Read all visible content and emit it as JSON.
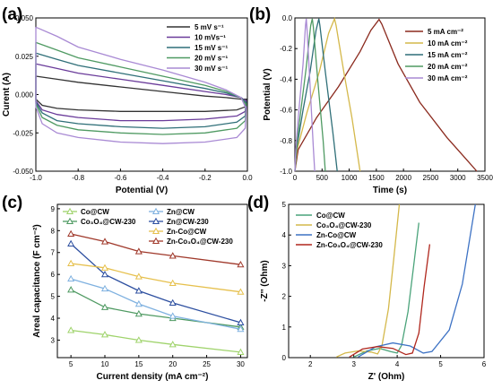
{
  "figure": {
    "panel_letters": [
      "(a)",
      "(b)",
      "(c)",
      "(d)"
    ]
  },
  "chart_data": [
    {
      "panel": "(a)",
      "type": "line",
      "title": "",
      "xlabel": "Potential (V)",
      "ylabel": "Curent (A)",
      "xlim": [
        -1.0,
        0.0
      ],
      "ylim": [
        -0.05,
        0.05
      ],
      "xticks": [
        -1.0,
        -0.8,
        -0.6,
        -0.4,
        -0.2,
        0.0
      ],
      "xtick_labels": [
        "-1.0",
        "-0.8",
        "-0.6",
        "-0.4",
        "-0.2",
        "0.0"
      ],
      "yticks": [
        -0.05,
        -0.025,
        0.0,
        0.025,
        0.05
      ],
      "ytick_labels": [
        "-0.050",
        "-0.025",
        "0.000",
        "0.025",
        "0.050"
      ],
      "legend_position": "top-right",
      "series": [
        {
          "name": "5 mV s⁻¹",
          "color": "#333333",
          "upper": [
            [
              -1.0,
              0.012
            ],
            [
              -0.9,
              0.01
            ],
            [
              -0.8,
              0.008
            ],
            [
              -0.6,
              0.005
            ],
            [
              -0.4,
              0.002
            ],
            [
              -0.2,
              -0.001
            ],
            [
              -0.1,
              -0.002
            ],
            [
              -0.03,
              -0.003
            ],
            [
              -0.01,
              -0.003
            ]
          ],
          "lower": [
            [
              -1.0,
              -0.003
            ],
            [
              -0.97,
              -0.007
            ],
            [
              -0.9,
              -0.009
            ],
            [
              -0.8,
              -0.01
            ],
            [
              -0.6,
              -0.011
            ],
            [
              -0.4,
              -0.011
            ],
            [
              -0.2,
              -0.011
            ],
            [
              -0.05,
              -0.01
            ],
            [
              -0.01,
              -0.008
            ],
            [
              -0.005,
              -0.003
            ]
          ]
        },
        {
          "name": "10 mVs⁻¹",
          "color": "#6a3b9a",
          "upper": [
            [
              -1.0,
              0.02
            ],
            [
              -0.9,
              0.017
            ],
            [
              -0.8,
              0.014
            ],
            [
              -0.6,
              0.01
            ],
            [
              -0.4,
              0.006
            ],
            [
              -0.2,
              0.002
            ],
            [
              -0.1,
              0.0
            ],
            [
              -0.03,
              -0.002
            ],
            [
              -0.01,
              -0.004
            ]
          ],
          "lower": [
            [
              -1.0,
              -0.004
            ],
            [
              -0.97,
              -0.01
            ],
            [
              -0.9,
              -0.013
            ],
            [
              -0.8,
              -0.015
            ],
            [
              -0.6,
              -0.017
            ],
            [
              -0.4,
              -0.017
            ],
            [
              -0.2,
              -0.016
            ],
            [
              -0.05,
              -0.014
            ],
            [
              -0.01,
              -0.011
            ],
            [
              -0.005,
              -0.004
            ]
          ]
        },
        {
          "name": "15 mV s⁻¹",
          "color": "#2f6f78",
          "upper": [
            [
              -1.0,
              0.027
            ],
            [
              -0.9,
              0.023
            ],
            [
              -0.8,
              0.019
            ],
            [
              -0.6,
              0.014
            ],
            [
              -0.4,
              0.009
            ],
            [
              -0.2,
              0.004
            ],
            [
              -0.1,
              0.001
            ],
            [
              -0.03,
              -0.002
            ],
            [
              -0.01,
              -0.005
            ]
          ],
          "lower": [
            [
              -1.0,
              -0.005
            ],
            [
              -0.97,
              -0.012
            ],
            [
              -0.9,
              -0.017
            ],
            [
              -0.8,
              -0.019
            ],
            [
              -0.6,
              -0.021
            ],
            [
              -0.4,
              -0.022
            ],
            [
              -0.2,
              -0.021
            ],
            [
              -0.05,
              -0.018
            ],
            [
              -0.01,
              -0.014
            ],
            [
              -0.005,
              -0.005
            ]
          ]
        },
        {
          "name": "20 mV s⁻¹",
          "color": "#4f9a62",
          "upper": [
            [
              -1.0,
              0.034
            ],
            [
              -0.9,
              0.029
            ],
            [
              -0.8,
              0.024
            ],
            [
              -0.6,
              0.018
            ],
            [
              -0.4,
              0.012
            ],
            [
              -0.2,
              0.006
            ],
            [
              -0.1,
              0.002
            ],
            [
              -0.03,
              -0.002
            ],
            [
              -0.01,
              -0.006
            ]
          ],
          "lower": [
            [
              -1.0,
              -0.006
            ],
            [
              -0.97,
              -0.015
            ],
            [
              -0.9,
              -0.02
            ],
            [
              -0.8,
              -0.023
            ],
            [
              -0.6,
              -0.025
            ],
            [
              -0.4,
              -0.026
            ],
            [
              -0.2,
              -0.025
            ],
            [
              -0.05,
              -0.022
            ],
            [
              -0.01,
              -0.017
            ],
            [
              -0.005,
              -0.006
            ]
          ]
        },
        {
          "name": "30 mV s⁻¹",
          "color": "#a98ad4",
          "upper": [
            [
              -1.0,
              0.044
            ],
            [
              -0.9,
              0.038
            ],
            [
              -0.8,
              0.031
            ],
            [
              -0.6,
              0.023
            ],
            [
              -0.4,
              0.016
            ],
            [
              -0.2,
              0.008
            ],
            [
              -0.1,
              0.003
            ],
            [
              -0.03,
              -0.002
            ],
            [
              -0.01,
              -0.008
            ]
          ],
          "lower": [
            [
              -1.0,
              -0.008
            ],
            [
              -0.97,
              -0.019
            ],
            [
              -0.9,
              -0.025
            ],
            [
              -0.8,
              -0.028
            ],
            [
              -0.6,
              -0.031
            ],
            [
              -0.4,
              -0.032
            ],
            [
              -0.2,
              -0.031
            ],
            [
              -0.05,
              -0.028
            ],
            [
              -0.01,
              -0.022
            ],
            [
              -0.005,
              -0.008
            ]
          ]
        }
      ]
    },
    {
      "panel": "(b)",
      "type": "line",
      "title": "",
      "xlabel": "Time (s)",
      "ylabel": "Potential (V)",
      "xlim": [
        0,
        3500
      ],
      "ylim": [
        -1.0,
        0.0
      ],
      "xticks": [
        0,
        500,
        1000,
        1500,
        2000,
        2500,
        3000,
        3500
      ],
      "xtick_labels": [
        "0",
        "500",
        "1000",
        "1500",
        "2000",
        "2500",
        "3000",
        "3500"
      ],
      "yticks": [
        -1.0,
        -0.8,
        -0.6,
        -0.4,
        -0.2,
        0.0
      ],
      "ytick_labels": [
        "-1.0",
        "-0.8",
        "-0.6",
        "-0.4",
        "-0.2",
        "0.0"
      ],
      "legend_position": "top-right",
      "series": [
        {
          "name": "5 mA cm⁻²",
          "color": "#8b2a1e",
          "points": [
            [
              0,
              -1.0
            ],
            [
              60,
              -0.86
            ],
            [
              400,
              -0.65
            ],
            [
              800,
              -0.45
            ],
            [
              1200,
              -0.22
            ],
            [
              1400,
              -0.08
            ],
            [
              1550,
              -0.01
            ],
            [
              1600,
              -0.04
            ],
            [
              1900,
              -0.3
            ],
            [
              2300,
              -0.55
            ],
            [
              2800,
              -0.78
            ],
            [
              3200,
              -0.94
            ],
            [
              3350,
              -1.0
            ]
          ]
        },
        {
          "name": "10 mA cm⁻²",
          "color": "#d4b84a",
          "points": [
            [
              0,
              -1.0
            ],
            [
              40,
              -0.86
            ],
            [
              220,
              -0.62
            ],
            [
              450,
              -0.35
            ],
            [
              620,
              -0.1
            ],
            [
              730,
              -0.005
            ],
            [
              760,
              -0.05
            ],
            [
              900,
              -0.35
            ],
            [
              1050,
              -0.65
            ],
            [
              1200,
              -1.0
            ]
          ]
        },
        {
          "name": "15 mA cm⁻²",
          "color": "#2f6f78",
          "points": [
            [
              0,
              -1.0
            ],
            [
              30,
              -0.86
            ],
            [
              150,
              -0.6
            ],
            [
              280,
              -0.35
            ],
            [
              390,
              -0.08
            ],
            [
              440,
              -0.005
            ],
            [
              460,
              -0.05
            ],
            [
              560,
              -0.35
            ],
            [
              700,
              -0.75
            ],
            [
              780,
              -1.0
            ]
          ]
        },
        {
          "name": "20 mA cm⁻²",
          "color": "#4f9a62",
          "points": [
            [
              0,
              -1.0
            ],
            [
              25,
              -0.86
            ],
            [
              110,
              -0.6
            ],
            [
              210,
              -0.32
            ],
            [
              290,
              -0.05
            ],
            [
              320,
              -0.005
            ],
            [
              340,
              -0.06
            ],
            [
              420,
              -0.4
            ],
            [
              520,
              -0.8
            ],
            [
              560,
              -1.0
            ]
          ]
        },
        {
          "name": "30 mA cm⁻²",
          "color": "#a98ad4",
          "points": [
            [
              0,
              -1.0
            ],
            [
              15,
              -0.86
            ],
            [
              80,
              -0.58
            ],
            [
              150,
              -0.3
            ],
            [
              195,
              -0.05
            ],
            [
              210,
              -0.005
            ],
            [
              225,
              -0.08
            ],
            [
              280,
              -0.45
            ],
            [
              340,
              -0.85
            ],
            [
              365,
              -1.0
            ]
          ]
        }
      ]
    },
    {
      "panel": "(c)",
      "type": "line",
      "title": "",
      "xlabel": "Current density (mA cm⁻²)",
      "ylabel": "Areal capacitance (F cm⁻²)",
      "xlim": [
        3,
        31
      ],
      "ylim": [
        2.2,
        9.2
      ],
      "xticks": [
        5,
        10,
        15,
        20,
        25,
        30
      ],
      "xtick_labels": [
        "5",
        "10",
        "15",
        "20",
        "25",
        "30"
      ],
      "yticks": [
        3,
        4,
        5,
        6,
        7,
        8,
        9
      ],
      "ytick_labels": [
        "3",
        "4",
        "5",
        "6",
        "7",
        "8",
        "9"
      ],
      "legend_position": "top",
      "x": [
        5,
        10,
        15,
        20,
        30
      ],
      "series": [
        {
          "name": "Co@CW",
          "color": "#9fd36b",
          "marker": "triangle",
          "values": [
            3.45,
            3.25,
            3.0,
            2.8,
            2.45
          ]
        },
        {
          "name": "Co₃O₄@CW-230",
          "color": "#4f9a62",
          "marker": "triangle",
          "values": [
            5.3,
            4.5,
            4.2,
            4.0,
            3.6
          ]
        },
        {
          "name": "Zn@CW",
          "color": "#7fb1e0",
          "marker": "triangle",
          "values": [
            5.8,
            5.35,
            4.65,
            4.1,
            3.5
          ]
        },
        {
          "name": "Zn@CW-230",
          "color": "#2d4fa0",
          "marker": "triangle",
          "values": [
            7.4,
            6.0,
            5.25,
            4.7,
            3.8
          ]
        },
        {
          "name": "Zn-Co@CW",
          "color": "#e6c04d",
          "marker": "triangle",
          "values": [
            6.5,
            6.3,
            5.9,
            5.6,
            5.2
          ]
        },
        {
          "name": "Zn-Co₃O₄@CW-230",
          "color": "#a0392b",
          "marker": "triangle",
          "values": [
            7.85,
            7.5,
            7.05,
            6.85,
            6.45
          ]
        }
      ]
    },
    {
      "panel": "(d)",
      "type": "line",
      "title": "",
      "xlabel": "Z' (Ohm)",
      "ylabel": "-Z'' (Ohm)",
      "xlim": [
        1.5,
        6.0
      ],
      "ylim": [
        0,
        5
      ],
      "xticks": [
        2,
        3,
        4,
        5,
        6
      ],
      "xtick_labels": [
        "2",
        "3",
        "4",
        "5",
        "6"
      ],
      "yticks": [
        0,
        1,
        2,
        3,
        4,
        5
      ],
      "ytick_labels": [
        "0",
        "1",
        "2",
        "3",
        "4",
        "5"
      ],
      "legend_position": "top-left",
      "series": [
        {
          "name": "Co@CW",
          "color": "#4aa37a",
          "points": [
            [
              3.0,
              0.02
            ],
            [
              3.3,
              0.22
            ],
            [
              3.6,
              0.3
            ],
            [
              3.85,
              0.2
            ],
            [
              4.0,
              0.15
            ],
            [
              4.1,
              0.4
            ],
            [
              4.25,
              1.5
            ],
            [
              4.38,
              3.0
            ],
            [
              4.5,
              4.4
            ]
          ]
        },
        {
          "name": "Co₃O₄@CW-230",
          "color": "#d4b84a",
          "points": [
            [
              2.6,
              0.02
            ],
            [
              2.8,
              0.15
            ],
            [
              3.1,
              0.22
            ],
            [
              3.4,
              0.18
            ],
            [
              3.55,
              0.12
            ],
            [
              3.65,
              0.4
            ],
            [
              3.8,
              1.6
            ],
            [
              3.92,
              3.2
            ],
            [
              4.05,
              5.0
            ]
          ]
        },
        {
          "name": "Zn-Co@CW",
          "color": "#3d72c4",
          "points": [
            [
              3.1,
              0.02
            ],
            [
              3.5,
              0.35
            ],
            [
              3.9,
              0.48
            ],
            [
              4.3,
              0.38
            ],
            [
              4.6,
              0.15
            ],
            [
              4.8,
              0.2
            ],
            [
              5.2,
              0.9
            ],
            [
              5.5,
              2.4
            ],
            [
              5.8,
              5.0
            ]
          ]
        },
        {
          "name": "Zn-Co₃O₄@CW-230",
          "color": "#b0271d",
          "points": [
            [
              2.9,
              0.02
            ],
            [
              3.2,
              0.28
            ],
            [
              3.55,
              0.36
            ],
            [
              3.9,
              0.3
            ],
            [
              4.2,
              0.1
            ],
            [
              4.35,
              0.15
            ],
            [
              4.5,
              0.8
            ],
            [
              4.62,
              2.3
            ],
            [
              4.75,
              3.7
            ]
          ]
        }
      ]
    }
  ]
}
